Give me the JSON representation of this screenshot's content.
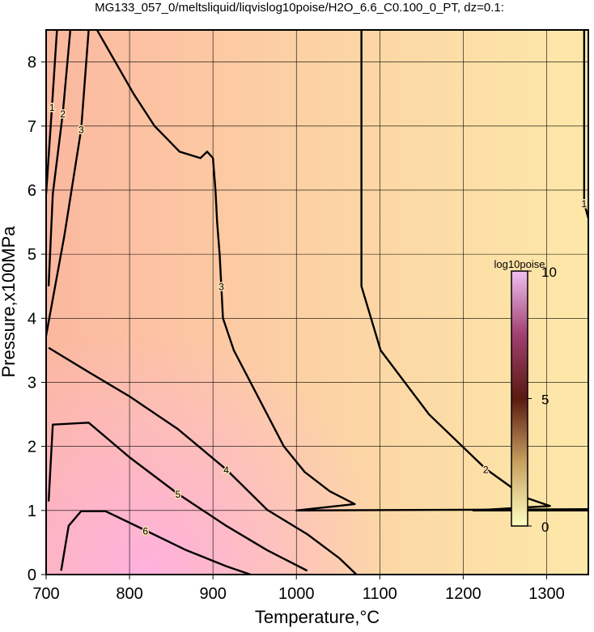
{
  "chart_data": {
    "type": "contour",
    "title": "MG133_057_0/meltsliquid/liqvislog10poise/H2O_6.6_C0.100_0_PT, dz=0.1:",
    "x_label": "Temperature,°C",
    "y_label": "Pressure,x100MPa",
    "xlim": [
      700,
      1350
    ],
    "ylim": [
      0,
      8.5
    ],
    "xticks": [
      700,
      800,
      900,
      1000,
      1100,
      1200,
      1300
    ],
    "yticks": [
      0,
      1,
      2,
      3,
      4,
      5,
      6,
      7,
      8
    ],
    "grid": true,
    "line_color": "#000000",
    "contours": [
      {
        "level": 2,
        "x": [
          1078,
          1078,
          1078,
          1101,
          1159,
          1227,
          1275,
          1304,
          1212,
          1350
        ],
        "y": [
          8.5,
          6.0,
          4.5,
          3.5,
          2.5,
          1.65,
          1.2,
          1.07,
          1.0,
          1.0
        ]
      },
      {
        "level": 3,
        "x": [
          761,
          805,
          830,
          860,
          885,
          893,
          900,
          903,
          905,
          908,
          910,
          912,
          925,
          945,
          965,
          985,
          1010,
          1040,
          1070,
          1000,
          1350
        ],
        "y": [
          8.5,
          7.5,
          7.0,
          6.6,
          6.5,
          6.6,
          6.5,
          6.0,
          5.5,
          5.0,
          4.5,
          4.0,
          3.5,
          3.0,
          2.5,
          2.0,
          1.6,
          1.3,
          1.1,
          1.0,
          1.02
        ]
      },
      {
        "level": 4,
        "x": [
          703,
          751,
          800,
          858,
          916,
          965,
          1013,
          1052,
          1072
        ],
        "y": [
          3.54,
          3.16,
          2.78,
          2.27,
          1.64,
          1.01,
          0.63,
          0.25,
          0
        ]
      },
      {
        "level": 5,
        "x": [
          703,
          708,
          751,
          800,
          858,
          916,
          965,
          1013
        ],
        "y": [
          1.14,
          2.34,
          2.37,
          1.83,
          1.26,
          0.76,
          0.38,
          0.06
        ]
      },
      {
        "level": 6,
        "x": [
          718,
          727,
          742,
          771,
          819,
          868,
          916,
          945
        ],
        "y": [
          0.06,
          0.76,
          0.99,
          0.99,
          0.69,
          0.38,
          0.13,
          0
        ]
      },
      {
        "level": 3,
        "x": [
          700,
          722,
          742,
          751
        ],
        "y": [
          3.73,
          5.3,
          6.95,
          8.5
        ]
      },
      {
        "level": 2,
        "x": [
          703,
          708,
          720,
          729
        ],
        "y": [
          4.5,
          5.94,
          7.2,
          8.5
        ]
      },
      {
        "level": 1,
        "x": [
          700,
          707,
          713
        ],
        "y": [
          5.94,
          7.3,
          8.5
        ]
      },
      {
        "level": 1,
        "x": [
          1345,
          1345,
          1350
        ],
        "y": [
          8.5,
          5.8,
          5.56
        ]
      }
    ],
    "colorbar": {
      "label": "log10poise",
      "lim": [
        0,
        10
      ],
      "ticks": [
        0,
        5,
        10
      ],
      "colors": [
        "#ffffc0",
        "#c8a060",
        "#5a1a10",
        "#a04070",
        "#f0c0f0"
      ]
    }
  }
}
